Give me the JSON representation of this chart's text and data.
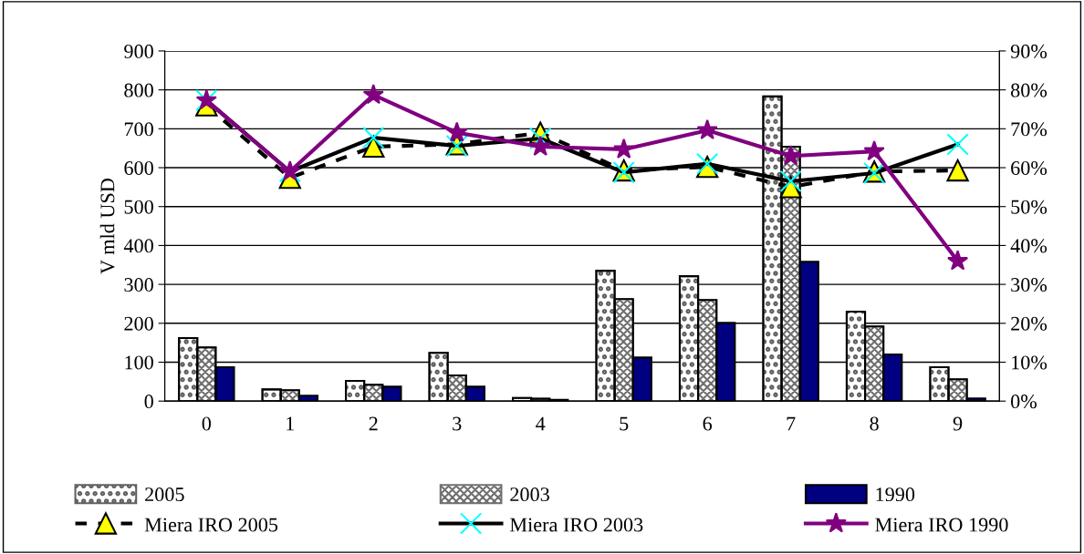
{
  "chart_data": {
    "type": "bar",
    "ylabel": "V mld USD",
    "categories": [
      "0",
      "1",
      "2",
      "3",
      "4",
      "5",
      "6",
      "7",
      "8",
      "9"
    ],
    "ylim": [
      0,
      900
    ],
    "yticks": [
      0,
      100,
      200,
      300,
      400,
      500,
      600,
      700,
      800,
      900
    ],
    "y2lim": [
      0,
      0.9
    ],
    "y2ticks": [
      {
        "value": 0,
        "label": "0%"
      },
      {
        "value": 0.1,
        "label": "10%"
      },
      {
        "value": 0.2,
        "label": "20%"
      },
      {
        "value": 0.3,
        "label": "30%"
      },
      {
        "value": 0.4,
        "label": "40%"
      },
      {
        "value": 0.5,
        "label": "50%"
      },
      {
        "value": 0.6,
        "label": "60%"
      },
      {
        "value": 0.7,
        "label": "70%"
      },
      {
        "value": 0.8,
        "label": "80%"
      },
      {
        "value": 0.9,
        "label": "90%"
      }
    ],
    "grid": "y",
    "legend": "bottom",
    "series": [
      {
        "name": "2005",
        "color": "#606060",
        "values": [
          162,
          30,
          52,
          124,
          8,
          335,
          321,
          783,
          230,
          87
        ]
      },
      {
        "name": "2003",
        "color": "#707070",
        "values": [
          138,
          28,
          42,
          66,
          6,
          262,
          260,
          654,
          192,
          56
        ]
      },
      {
        "name": "1990",
        "color": "#000080",
        "values": [
          87,
          14,
          37,
          37,
          3,
          112,
          201,
          358,
          120,
          7
        ]
      },
      {
        "name": "Miera IRO 2005",
        "type": "line",
        "axis": "y2",
        "color": "#000000",
        "marker": "triangle",
        "line_style": "dashed",
        "values": [
          0.76,
          0.574,
          0.654,
          0.66,
          0.69,
          0.593,
          0.602,
          0.55,
          0.59,
          0.593
        ]
      },
      {
        "name": "Miera IRO 2003",
        "type": "line",
        "axis": "y2",
        "color": "#000000",
        "marker": "cross",
        "line_style": "solid",
        "values": [
          0.773,
          0.59,
          0.677,
          0.656,
          0.675,
          0.588,
          0.61,
          0.565,
          0.586,
          0.66
        ]
      },
      {
        "name": "Miera IRO 1990",
        "type": "line",
        "axis": "y2",
        "color": "#800080",
        "marker": "star",
        "line_style": "solid",
        "values": [
          0.773,
          0.59,
          0.787,
          0.69,
          0.654,
          0.647,
          0.696,
          0.63,
          0.642,
          0.36
        ]
      }
    ]
  }
}
